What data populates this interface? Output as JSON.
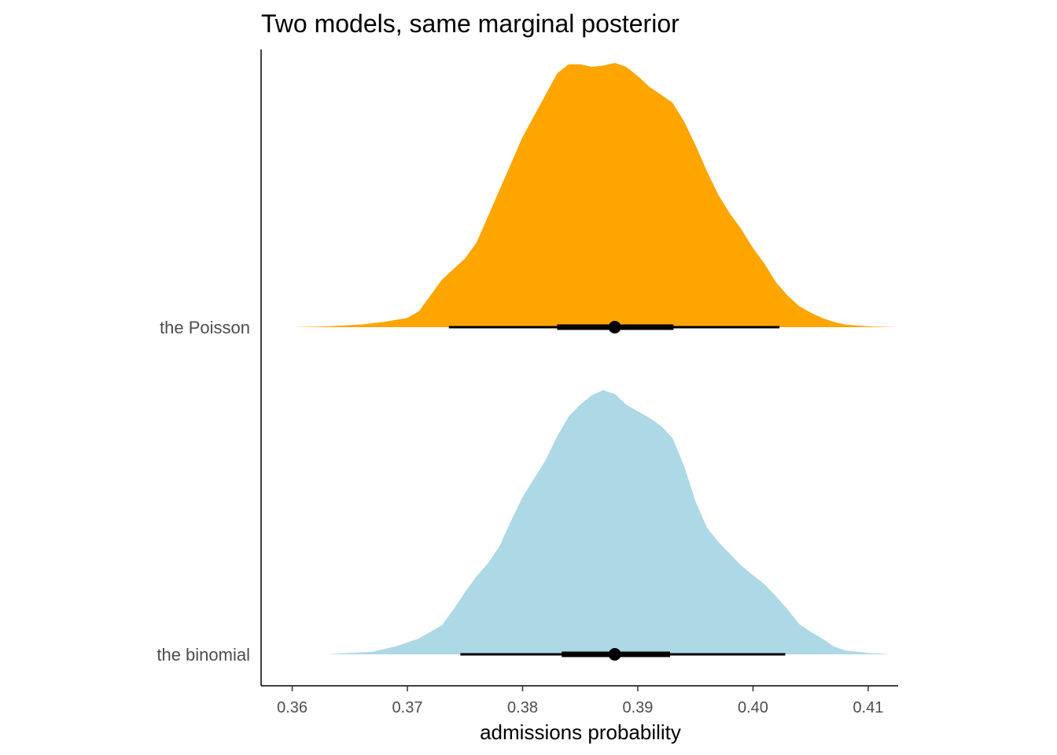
{
  "chart_data": {
    "type": "density-ridge",
    "title": "Two models, same marginal posterior",
    "xlabel": "admissions probability",
    "ylabel": "",
    "xlim": [
      0.3573,
      0.4126
    ],
    "xticks": [
      0.36,
      0.37,
      0.38,
      0.39,
      0.4,
      0.41
    ],
    "xtick_labels": [
      "0.36",
      "0.37",
      "0.38",
      "0.39",
      "0.40",
      "0.41"
    ],
    "grid": false,
    "legend": "none",
    "series": [
      {
        "name": "the Poisson",
        "color": "#FFA500",
        "point": 0.388,
        "interval_inner": [
          0.383,
          0.3931
        ],
        "interval_outer": [
          0.3736,
          0.4023
        ],
        "density": [
          [
            0.36,
            0.0
          ],
          [
            0.363,
            0.003
          ],
          [
            0.366,
            0.01
          ],
          [
            0.368,
            0.02
          ],
          [
            0.37,
            0.035
          ],
          [
            0.371,
            0.06
          ],
          [
            0.372,
            0.12
          ],
          [
            0.373,
            0.18
          ],
          [
            0.374,
            0.22
          ],
          [
            0.375,
            0.26
          ],
          [
            0.376,
            0.32
          ],
          [
            0.377,
            0.42
          ],
          [
            0.378,
            0.52
          ],
          [
            0.379,
            0.62
          ],
          [
            0.38,
            0.72
          ],
          [
            0.381,
            0.8
          ],
          [
            0.382,
            0.88
          ],
          [
            0.383,
            0.96
          ],
          [
            0.384,
            0.995
          ],
          [
            0.385,
            0.995
          ],
          [
            0.386,
            0.985
          ],
          [
            0.387,
            0.99
          ],
          [
            0.388,
            1.0
          ],
          [
            0.389,
            0.985
          ],
          [
            0.39,
            0.95
          ],
          [
            0.391,
            0.91
          ],
          [
            0.392,
            0.88
          ],
          [
            0.393,
            0.85
          ],
          [
            0.394,
            0.78
          ],
          [
            0.395,
            0.69
          ],
          [
            0.396,
            0.59
          ],
          [
            0.397,
            0.5
          ],
          [
            0.398,
            0.43
          ],
          [
            0.399,
            0.37
          ],
          [
            0.4,
            0.3
          ],
          [
            0.401,
            0.24
          ],
          [
            0.402,
            0.17
          ],
          [
            0.403,
            0.12
          ],
          [
            0.404,
            0.08
          ],
          [
            0.405,
            0.055
          ],
          [
            0.406,
            0.035
          ],
          [
            0.407,
            0.02
          ],
          [
            0.408,
            0.01
          ],
          [
            0.41,
            0.003
          ],
          [
            0.4126,
            0.0
          ]
        ]
      },
      {
        "name": "the binomial",
        "color": "#ADD8E6",
        "point": 0.388,
        "interval_inner": [
          0.3834,
          0.3928
        ],
        "interval_outer": [
          0.3746,
          0.4028
        ],
        "density": [
          [
            0.363,
            0.0
          ],
          [
            0.365,
            0.005
          ],
          [
            0.367,
            0.01
          ],
          [
            0.369,
            0.03
          ],
          [
            0.371,
            0.06
          ],
          [
            0.372,
            0.085
          ],
          [
            0.373,
            0.11
          ],
          [
            0.374,
            0.17
          ],
          [
            0.375,
            0.235
          ],
          [
            0.376,
            0.295
          ],
          [
            0.377,
            0.345
          ],
          [
            0.378,
            0.41
          ],
          [
            0.379,
            0.505
          ],
          [
            0.38,
            0.595
          ],
          [
            0.381,
            0.665
          ],
          [
            0.382,
            0.735
          ],
          [
            0.383,
            0.825
          ],
          [
            0.384,
            0.9
          ],
          [
            0.385,
            0.945
          ],
          [
            0.386,
            0.98
          ],
          [
            0.387,
            1.0
          ],
          [
            0.388,
            0.985
          ],
          [
            0.389,
            0.945
          ],
          [
            0.39,
            0.92
          ],
          [
            0.391,
            0.895
          ],
          [
            0.392,
            0.865
          ],
          [
            0.393,
            0.82
          ],
          [
            0.394,
            0.715
          ],
          [
            0.395,
            0.58
          ],
          [
            0.396,
            0.48
          ],
          [
            0.397,
            0.425
          ],
          [
            0.398,
            0.38
          ],
          [
            0.399,
            0.335
          ],
          [
            0.4,
            0.3
          ],
          [
            0.401,
            0.265
          ],
          [
            0.402,
            0.22
          ],
          [
            0.403,
            0.17
          ],
          [
            0.404,
            0.115
          ],
          [
            0.405,
            0.085
          ],
          [
            0.406,
            0.06
          ],
          [
            0.407,
            0.03
          ],
          [
            0.408,
            0.015
          ],
          [
            0.41,
            0.005
          ],
          [
            0.412,
            0.0
          ]
        ]
      }
    ]
  }
}
